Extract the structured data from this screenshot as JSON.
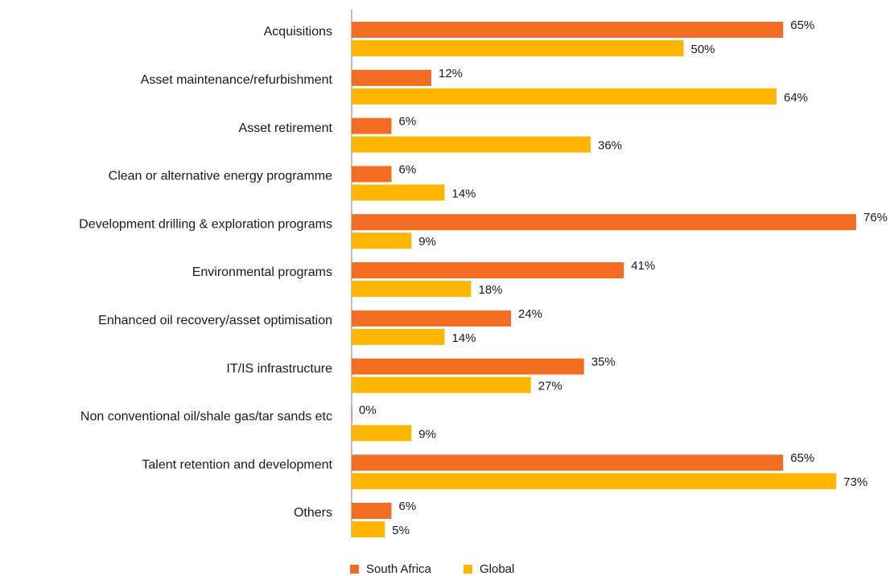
{
  "chart_data": {
    "type": "bar",
    "orientation": "horizontal",
    "categories": [
      "Acquisitions",
      "Asset maintenance/refurbishment",
      "Asset retirement",
      "Clean or alternative energy programme",
      "Development drilling & exploration programs",
      "Environmental programs",
      "Enhanced oil recovery/asset optimisation",
      "IT/IS infrastructure",
      "Non conventional oil/shale gas/tar sands etc",
      "Talent retention and development",
      "Others"
    ],
    "series": [
      {
        "name": "South Africa",
        "color": "#f26d21",
        "values": [
          65,
          12,
          6,
          6,
          76,
          41,
          24,
          35,
          0,
          65,
          6
        ],
        "value_labels": [
          "65%",
          "12%",
          "6%",
          "6%",
          "76%",
          "41%",
          "24%",
          "35%",
          "0%",
          "65%",
          "6%"
        ]
      },
      {
        "name": "Global",
        "color": "#ffb600",
        "values": [
          50,
          64,
          36,
          14,
          9,
          18,
          14,
          27,
          9,
          73,
          5
        ],
        "value_labels": [
          "50%",
          "64%",
          "36%",
          "14%",
          "9%",
          "18%",
          "14%",
          "27%",
          "9%",
          "73%",
          "5%"
        ]
      }
    ],
    "xlim": [
      0,
      76
    ],
    "legend": "bottom"
  }
}
